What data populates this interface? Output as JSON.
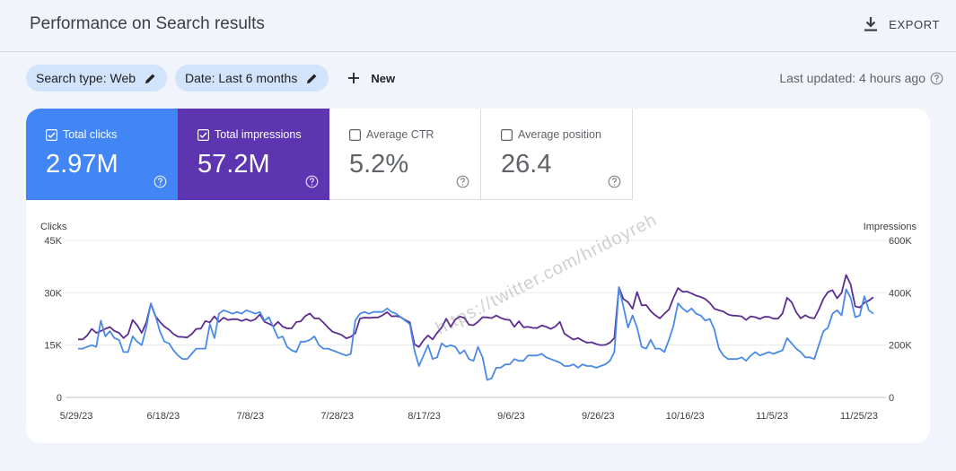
{
  "header": {
    "title": "Performance on Search results",
    "export_label": "EXPORT"
  },
  "filters": {
    "search_type": "Search type: Web",
    "date": "Date: Last 6 months",
    "new_label": "New"
  },
  "last_updated": "Last updated: 4 hours ago",
  "metrics": [
    {
      "label": "Total clicks",
      "value": "2.97M",
      "checked": true,
      "color": "#4285f4"
    },
    {
      "label": "Total impressions",
      "value": "57.2M",
      "checked": true,
      "color": "#5e35b1"
    },
    {
      "label": "Average CTR",
      "value": "5.2%",
      "checked": false,
      "color": "#ffffff"
    },
    {
      "label": "Average position",
      "value": "26.4",
      "checked": false,
      "color": "#ffffff"
    }
  ],
  "watermark": "https://twitter.com/hridoyreh",
  "chart_data": {
    "type": "line",
    "left_axis": {
      "title": "Clicks",
      "ticks": [
        "0",
        "15K",
        "30K",
        "45K"
      ],
      "range": [
        0,
        45000
      ]
    },
    "right_axis": {
      "title": "Impressions",
      "ticks": [
        "0",
        "200K",
        "400K",
        "600K"
      ],
      "range": [
        0,
        600000
      ]
    },
    "x_ticks": [
      "5/29/23",
      "6/18/23",
      "7/8/23",
      "7/28/23",
      "8/17/23",
      "9/6/23",
      "9/26/23",
      "10/16/23",
      "11/5/23",
      "11/25/23"
    ],
    "grid": true,
    "series": [
      {
        "name": "Clicks",
        "axis": "left",
        "color": "#4a8ae8",
        "values": [
          14000,
          14000,
          14500,
          15000,
          14500,
          22000,
          17500,
          19000,
          17000,
          16500,
          13000,
          13000,
          17500,
          16000,
          15000,
          20000,
          27000,
          23500,
          19000,
          16000,
          15500,
          13500,
          12000,
          11000,
          11000,
          12500,
          14000,
          14000,
          14000,
          21000,
          17000,
          24000,
          25000,
          24500,
          24000,
          24500,
          24000,
          25000,
          24500,
          24000,
          24500,
          22000,
          23000,
          20000,
          17000,
          17500,
          14500,
          13500,
          13000,
          16000,
          16000,
          16500,
          17500,
          15000,
          14000,
          14000,
          13500,
          13000,
          12500,
          12000,
          12500,
          22000,
          24000,
          24500,
          24000,
          24500,
          24500,
          24500,
          25500,
          24500,
          24000,
          23000,
          22000,
          21000,
          13500,
          9000,
          12000,
          15000,
          11000,
          11500,
          15500,
          14500,
          15000,
          14500,
          12500,
          13500,
          11000,
          10500,
          14500,
          11500,
          5000,
          5500,
          8500,
          8500,
          9500,
          9500,
          11000,
          10500,
          10500,
          12000,
          12000,
          12000,
          12500,
          11500,
          11000,
          10500,
          10000,
          9000,
          9000,
          9500,
          8500,
          9500,
          9000,
          9000,
          8500,
          9000,
          9500,
          10500,
          13000,
          31500,
          26000,
          20000,
          23500,
          20000,
          14500,
          14000,
          16500,
          14000,
          14000,
          13000,
          16500,
          20500,
          27000,
          25500,
          24500,
          25500,
          24000,
          23500,
          22000,
          22500,
          19500,
          14000,
          12000,
          11000,
          11000,
          11000,
          11500,
          10500,
          12000,
          13000,
          12000,
          12500,
          13000,
          12500,
          13000,
          13500,
          17000,
          15500,
          14000,
          13000,
          11500,
          11500,
          11000,
          15000,
          19000,
          20000,
          24000,
          25000,
          23500,
          31000,
          28500,
          23000,
          23500,
          29000,
          25000,
          24000
        ]
      },
      {
        "name": "Impressions",
        "axis": "right",
        "color": "#5c2d91",
        "values": [
          222000,
          222000,
          237000,
          262000,
          247000,
          254000,
          262000,
          269000,
          254000,
          247000,
          227000,
          242000,
          296000,
          276000,
          247000,
          286000,
          357000,
          311000,
          289000,
          271000,
          259000,
          242000,
          232000,
          231000,
          229000,
          242000,
          262000,
          263000,
          292000,
          287000,
          310000,
          289000,
          305000,
          296000,
          299000,
          299000,
          292000,
          299000,
          292000,
          299000,
          317000,
          289000,
          282000,
          272000,
          289000,
          271000,
          264000,
          264000,
          288000,
          291000,
          311000,
          321000,
          302000,
          302000,
          286000,
          267000,
          251000,
          245000,
          239000,
          226000,
          232000,
          245000,
          301000,
          305000,
          304000,
          305000,
          306000,
          314000,
          326000,
          310000,
          311000,
          307000,
          296000,
          287000,
          203000,
          193000,
          218000,
          237000,
          222000,
          247000,
          267000,
          301000,
          270000,
          298000,
          309000,
          304000,
          278000,
          276000,
          289000,
          307000,
          306000,
          303000,
          313000,
          304000,
          298000,
          296000,
          270000,
          291000,
          268000,
          270000,
          266000,
          265000,
          275000,
          270000,
          262000,
          271000,
          289000,
          244000,
          232000,
          221000,
          227000,
          217000,
          209000,
          211000,
          204000,
          200000,
          201000,
          209000,
          227000,
          421000,
          376000,
          364000,
          339000,
          403000,
          352000,
          353000,
          330000,
          314000,
          302000,
          320000,
          336000,
          380000,
          418000,
          404000,
          405000,
          397000,
          389000,
          384000,
          376000,
          361000,
          339000,
          333000,
          328000,
          317000,
          313000,
          312000,
          310000,
          296000,
          310000,
          307000,
          300000,
          308000,
          308000,
          301000,
          301000,
          321000,
          381000,
          364000,
          326000,
          302000,
          314000,
          305000,
          302000,
          336000,
          377000,
          403000,
          410000,
          379000,
          400000,
          468000,
          431000,
          348000,
          344000,
          362000,
          370000,
          383000
        ]
      }
    ]
  }
}
